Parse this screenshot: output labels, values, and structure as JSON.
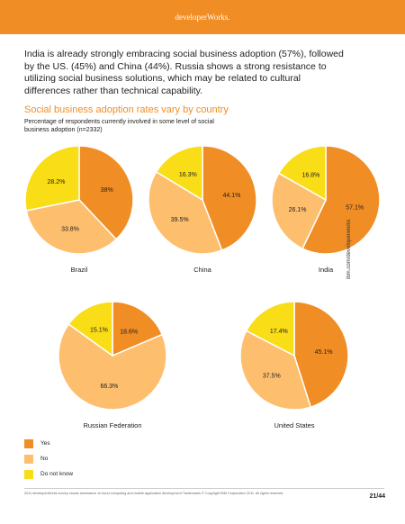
{
  "header": {
    "brand": "developerWorks."
  },
  "intro": "India is already strongly embracing social business adoption (57%), followed by the US. (45%) and China (44%). Russia shows a strong resistance to utilizing social business solutions, which may be related to cultural differences rather than technical capability.",
  "side_url": "ibm.com/developerworks",
  "legend": [
    {
      "label": "Yes",
      "color": "#f08d24"
    },
    {
      "label": "No",
      "color": "#fdbe6e"
    },
    {
      "label": "Do not know",
      "color": "#f9dd16"
    }
  ],
  "footer": {
    "note": "2011 developerWorks survey shows dominance of cloud computing and mobile application development Trademarks © Copyright IBM Corporation 2011. All rights reserved.",
    "page": "21/44"
  },
  "chart_data": {
    "type": "pie",
    "title": "Social business adoption rates vary by country",
    "subtitle": "Percentage of respondents currently involved in some level of social business adoption (n=2332)",
    "categories": [
      "Yes",
      "No",
      "Do not know"
    ],
    "colors": [
      "#f08d24",
      "#fdbe6e",
      "#f9dd16"
    ],
    "pies": [
      {
        "name": "Brazil",
        "values": [
          38,
          33.8,
          28.2
        ],
        "labels": [
          "38%",
          "33.8%",
          "28.2%"
        ]
      },
      {
        "name": "China",
        "values": [
          44.1,
          39.5,
          16.3
        ],
        "labels": [
          "44.1%",
          "39.5%",
          "16.3%"
        ]
      },
      {
        "name": "India",
        "values": [
          57.1,
          26.1,
          16.8
        ],
        "labels": [
          "57.1%",
          "26.1%",
          "16.8%"
        ]
      },
      {
        "name": "Russian Federation",
        "values": [
          18.6,
          66.3,
          15.1
        ],
        "labels": [
          "18.6%",
          "66.3%",
          "15.1%"
        ]
      },
      {
        "name": "United States",
        "values": [
          45.1,
          37.5,
          17.4
        ],
        "labels": [
          "45.1%",
          "37.5%",
          "17.4%"
        ]
      }
    ]
  }
}
